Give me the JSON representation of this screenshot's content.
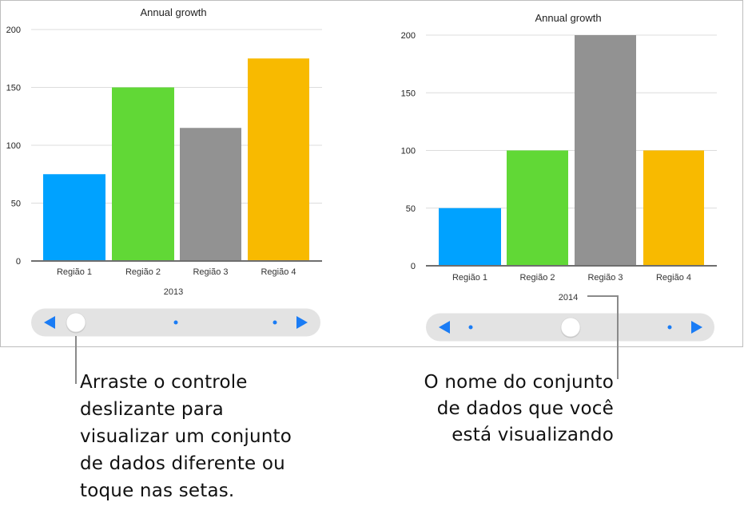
{
  "chart_data": [
    {
      "type": "bar",
      "title": "Annual growth",
      "dataset_label": "2013",
      "categories": [
        "Região 1",
        "Região 2",
        "Região 3",
        "Região 4"
      ],
      "values": [
        75,
        150,
        115,
        175
      ],
      "yticks": [
        0,
        50,
        100,
        150,
        200
      ],
      "ylim": [
        0,
        200
      ],
      "grid": true,
      "colors": [
        "#00a2ff",
        "#61d836",
        "#929292",
        "#f8ba00"
      ],
      "slider": {
        "position_index": 0,
        "dataset_count": 3
      }
    },
    {
      "type": "bar",
      "title": "Annual growth",
      "dataset_label": "2014",
      "categories": [
        "Região 1",
        "Região 2",
        "Região 3",
        "Região 4"
      ],
      "values": [
        50,
        100,
        200,
        100
      ],
      "yticks": [
        0,
        50,
        100,
        150,
        200
      ],
      "ylim": [
        0,
        200
      ],
      "grid": true,
      "colors": [
        "#00a2ff",
        "#61d836",
        "#929292",
        "#f8ba00"
      ],
      "slider": {
        "position_index": 1,
        "dataset_count": 3
      }
    }
  ],
  "slider_accent": "#1a7cf5",
  "callouts": {
    "left": [
      "Arraste o controle",
      "deslizante para",
      "visualizar um conjunto",
      "de dados diferente ou",
      "toque nas setas."
    ],
    "right": [
      "O nome do conjunto",
      "de dados que você",
      "está visualizando"
    ]
  }
}
